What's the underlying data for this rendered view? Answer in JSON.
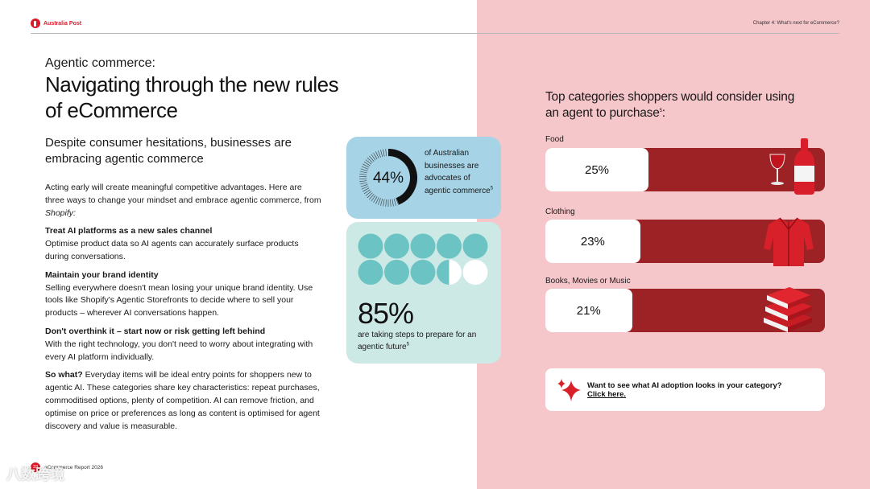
{
  "header": {
    "logo_text": "Australia Post",
    "chapter": "Chapter 4: What's next for eCommerce?"
  },
  "intro": {
    "kicker": "Agentic commerce:",
    "title": "Navigating through the new rules of eCommerce",
    "subtitle": "Despite consumer hesitations, businesses are embracing agentic commerce",
    "lead": "Acting early will create meaningful competitive advantages. Here are three ways to change your mindset and embrace agentic commerce, from ",
    "lead_source": "Shopify:",
    "points": [
      {
        "heading": "Treat AI platforms as a new sales channel",
        "text": "Optimise product data so AI agents can accurately surface products during conversations."
      },
      {
        "heading": "Maintain your brand identity",
        "text": "Selling everywhere doesn't mean losing your unique brand identity. Use tools like Shopify's Agentic Storefronts to decide where to sell your products – wherever AI conversations happen."
      },
      {
        "heading": "Don't overthink it – start now or risk getting left behind",
        "text": "With the right technology, you don't need to worry about integrating with every AI platform individually."
      }
    ],
    "so_what_heading": "So what?",
    "so_what_text": " Everyday items will be ideal entry points for shoppers new to agentic AI. These categories share key characteristics: repeat purchases, commoditised options, plenty of competition. AI can remove friction, and optimise on price or preferences as long as content is optimised for agent discovery and value is measurable."
  },
  "stat_advocates": {
    "value": "44%",
    "fraction": 0.44,
    "text": "of Australian businesses are advocates of agentic commerce",
    "footnote": "5",
    "colors": {
      "bg": "#a6d3e6",
      "fill": "#111111"
    }
  },
  "stat_preparing": {
    "value": "85%",
    "fraction": 0.85,
    "text": "are taking steps to prepare for an agentic future",
    "footnote": "5",
    "colors": {
      "bg": "#cde9e6",
      "dot": "#6cc3c3",
      "empty": "#ffffff"
    }
  },
  "categories": {
    "title": "Top categories shoppers would consider using an agent to purchase",
    "footnote": "5",
    "items": [
      {
        "label": "Food",
        "value": "25%",
        "fraction": 0.25,
        "icon": "wine-bottle-icon"
      },
      {
        "label": "Clothing",
        "value": "23%",
        "fraction": 0.23,
        "icon": "red-jacket-icon"
      },
      {
        "label": "Books, Movies or Music",
        "value": "21%",
        "fraction": 0.21,
        "icon": "books-icon"
      }
    ],
    "bar_color": "#9d2226"
  },
  "cta": {
    "text": "Want to see what AI adoption looks in your category?",
    "link": "Click here.",
    "icon": "sparkle-icon"
  },
  "footer": {
    "page": "33",
    "text": "eCommerce Report 2026"
  },
  "watermark": "八数跨境"
}
